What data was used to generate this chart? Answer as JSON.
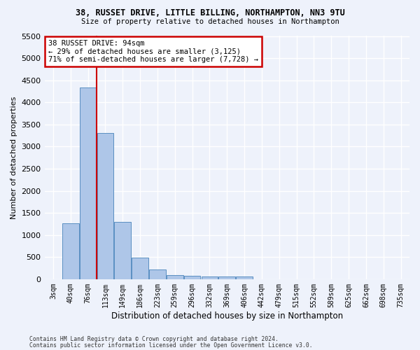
{
  "title_line1": "38, RUSSET DRIVE, LITTLE BILLING, NORTHAMPTON, NN3 9TU",
  "title_line2": "Size of property relative to detached houses in Northampton",
  "xlabel": "Distribution of detached houses by size in Northampton",
  "ylabel": "Number of detached properties",
  "bar_color": "#aec6e8",
  "bar_edge_color": "#5a8fc2",
  "categories": [
    "3sqm",
    "40sqm",
    "76sqm",
    "113sqm",
    "149sqm",
    "186sqm",
    "223sqm",
    "259sqm",
    "296sqm",
    "332sqm",
    "369sqm",
    "406sqm",
    "442sqm",
    "479sqm",
    "515sqm",
    "552sqm",
    "589sqm",
    "625sqm",
    "662sqm",
    "698sqm",
    "735sqm"
  ],
  "values": [
    0,
    1260,
    4340,
    3300,
    1290,
    490,
    215,
    90,
    70,
    60,
    55,
    55,
    0,
    0,
    0,
    0,
    0,
    0,
    0,
    0,
    0
  ],
  "ylim": [
    0,
    5500
  ],
  "yticks": [
    0,
    500,
    1000,
    1500,
    2000,
    2500,
    3000,
    3500,
    4000,
    4500,
    5000,
    5500
  ],
  "vline_index": 2.5,
  "annotation_title": "38 RUSSET DRIVE: 94sqm",
  "annotation_line1": "← 29% of detached houses are smaller (3,125)",
  "annotation_line2": "71% of semi-detached houses are larger (7,728) →",
  "vline_color": "#cc0000",
  "annotation_box_facecolor": "#ffffff",
  "annotation_box_edgecolor": "#cc0000",
  "background_color": "#eef2fb",
  "grid_color": "#ffffff",
  "footnote1": "Contains HM Land Registry data © Crown copyright and database right 2024.",
  "footnote2": "Contains public sector information licensed under the Open Government Licence v3.0."
}
